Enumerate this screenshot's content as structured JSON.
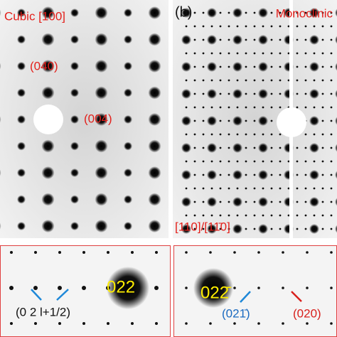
{
  "top_left": {
    "title": "Cubic [100]",
    "labels": [
      "(040)",
      "(004)"
    ]
  },
  "top_right": {
    "panel": "(b)",
    "title": "Monoclinic",
    "zone": "[110]/[11̄0]"
  },
  "bottom_left": {
    "spot": "022",
    "label": "(0 2 l+1/2)"
  },
  "bottom_right": {
    "spot": "022̄",
    "labels": [
      "(021̄)",
      "(020)"
    ]
  }
}
